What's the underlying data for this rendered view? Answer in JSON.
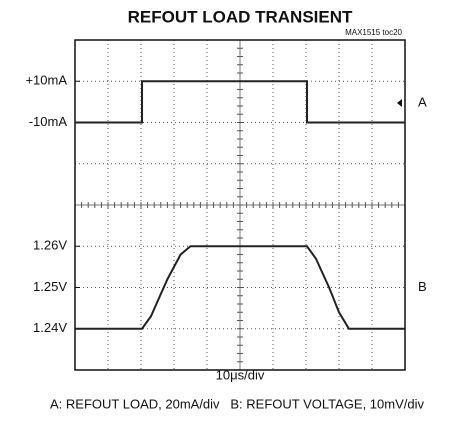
{
  "chart_data": {
    "type": "line",
    "title": "REFOUT LOAD TRANSIENT",
    "note": "MAX1515 toc20",
    "xlabel": "10μs/div",
    "caption": "A: REFOUT LOAD, 20mA/div   B: REFOUT VOLTAGE, 10mV/div",
    "xlim": [
      0,
      100
    ],
    "series": [
      {
        "name": "A",
        "color": "#222222",
        "x": [
          0,
          20.3,
          20.3,
          70.3,
          70.3,
          100
        ],
        "values": [
          -10,
          -10,
          10,
          10,
          -10,
          -10
        ],
        "ylim": [
          -130,
          30
        ],
        "yticks": [
          {
            "value": 10,
            "label": "+10mA"
          },
          {
            "value": -10,
            "label": "-10mA"
          }
        ]
      },
      {
        "name": "B",
        "color": "#222222",
        "x": [
          0,
          20.3,
          23,
          28,
          32,
          35,
          70.3,
          73,
          77,
          80,
          83,
          100
        ],
        "values": [
          1.24,
          1.24,
          1.243,
          1.252,
          1.258,
          1.26,
          1.26,
          1.257,
          1.25,
          1.244,
          1.24,
          1.24
        ],
        "ylim": [
          1.23,
          1.31
        ],
        "yticks": [
          {
            "value": 1.26,
            "label": "1.26V"
          },
          {
            "value": 1.25,
            "label": "1.25V"
          },
          {
            "value": 1.24,
            "label": "1.24V"
          }
        ]
      }
    ]
  }
}
